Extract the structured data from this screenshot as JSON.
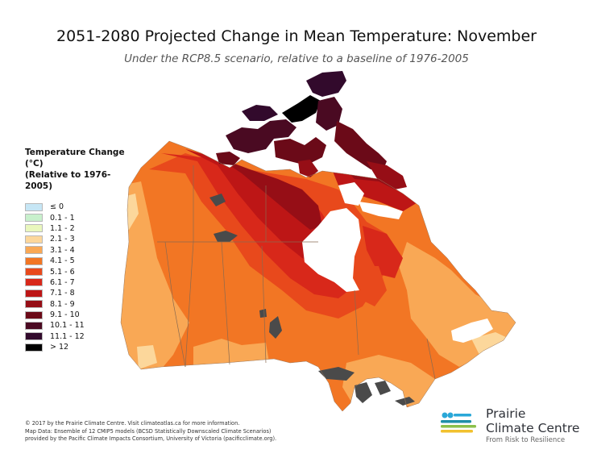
{
  "header": {
    "title": "2051-2080 Projected Change in Mean Temperature: November",
    "subtitle": "Under the RCP8.5 scenario, relative to a baseline of 1976-2005"
  },
  "legend": {
    "title_line1": "Temperature Change (°C)",
    "title_line2": "(Relative to 1976-2005)",
    "items": [
      {
        "label": "≤ 0",
        "color": "#c6e6f5"
      },
      {
        "label": "0.1 - 1",
        "color": "#c8f0cc"
      },
      {
        "label": "1.1 - 2",
        "color": "#e9f7bd"
      },
      {
        "label": "2.1 - 3",
        "color": "#fcd79b"
      },
      {
        "label": "3.1 - 4",
        "color": "#f9a855"
      },
      {
        "label": "4.1 - 5",
        "color": "#f27624"
      },
      {
        "label": "5.1 - 6",
        "color": "#e8491c"
      },
      {
        "label": "6.1 - 7",
        "color": "#d8281a"
      },
      {
        "label": "7.1 - 8",
        "color": "#bd1616"
      },
      {
        "label": "8.1 - 9",
        "color": "#960e16"
      },
      {
        "label": "9.1 - 10",
        "color": "#6b0a18"
      },
      {
        "label": "10.1 - 11",
        "color": "#4a0a22"
      },
      {
        "label": "11.1 - 12",
        "color": "#320a2c"
      },
      {
        "label": "> 12",
        "color": "#000000"
      }
    ]
  },
  "map": {
    "water_color": "#ffffff",
    "lake_color": "#4a4a4a",
    "boundary_color": "#8a6a50"
  },
  "footer": {
    "line1": "© 2017 by the Prairie Climate Centre. Visit climateatlas.ca for more information.",
    "line2": "Map Data: Ensemble of 12 CMIP5 models (BCSD Statistically Downscaled Climate Scenarios)",
    "line3": "provided by the Pacific Climate Impacts Consortium, University of Victoria (pacificclimate.org)."
  },
  "logo": {
    "name_line1": "Prairie",
    "name_line2": "Climate Centre",
    "tagline": "From Risk to Resilience",
    "colors": {
      "blue": "#2aa8d8",
      "green": "#8cc04a",
      "yellow": "#f2c12e",
      "teal": "#1f8fa8"
    }
  }
}
